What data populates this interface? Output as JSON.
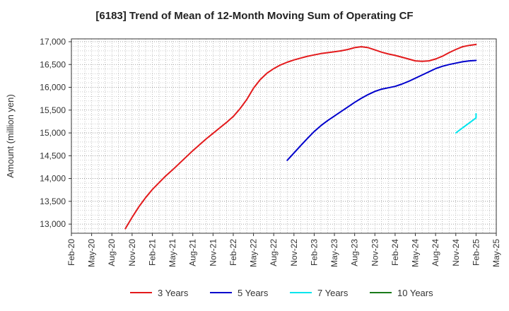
{
  "chart_data": {
    "type": "line",
    "title": "[6183]  Trend of Mean of 12-Month Moving Sum of Operating CF",
    "ylabel": "Amount (million yen)",
    "xlabel": "",
    "ylim": [
      12800,
      17000
    ],
    "yticks": [
      13000,
      13500,
      14000,
      14500,
      15000,
      15500,
      16000,
      16500,
      17000
    ],
    "ytick_labels": [
      "13,000",
      "13,500",
      "14,000",
      "14,500",
      "15,000",
      "15,500",
      "16,000",
      "16,500",
      "17,000"
    ],
    "xlim": [
      "2020-02",
      "2025-05"
    ],
    "xtick_labels": [
      "Feb-20",
      "May-20",
      "Aug-20",
      "Nov-20",
      "Feb-21",
      "May-21",
      "Aug-21",
      "Nov-21",
      "Feb-22",
      "May-22",
      "Aug-22",
      "Nov-22",
      "Feb-23",
      "May-23",
      "Aug-23",
      "Nov-23",
      "Feb-24",
      "May-24",
      "Aug-24",
      "Nov-24",
      "Feb-25",
      "May-25"
    ],
    "grid": true,
    "legend_position": "bottom",
    "series": [
      {
        "name": "3 Years",
        "color": "#e31a1c",
        "points": [
          [
            "2020-10",
            12900
          ],
          [
            "2020-11",
            13150
          ],
          [
            "2020-12",
            13380
          ],
          [
            "2021-01",
            13580
          ],
          [
            "2021-02",
            13760
          ],
          [
            "2021-03",
            13910
          ],
          [
            "2021-04",
            14060
          ],
          [
            "2021-05",
            14190
          ],
          [
            "2021-06",
            14330
          ],
          [
            "2021-07",
            14470
          ],
          [
            "2021-08",
            14610
          ],
          [
            "2021-09",
            14740
          ],
          [
            "2021-10",
            14870
          ],
          [
            "2021-11",
            14990
          ],
          [
            "2021-12",
            15110
          ],
          [
            "2022-01",
            15230
          ],
          [
            "2022-02",
            15360
          ],
          [
            "2022-03",
            15530
          ],
          [
            "2022-04",
            15730
          ],
          [
            "2022-05",
            15980
          ],
          [
            "2022-06",
            16170
          ],
          [
            "2022-07",
            16310
          ],
          [
            "2022-08",
            16410
          ],
          [
            "2022-09",
            16490
          ],
          [
            "2022-10",
            16550
          ],
          [
            "2022-11",
            16600
          ],
          [
            "2022-12",
            16640
          ],
          [
            "2023-01",
            16680
          ],
          [
            "2023-02",
            16710
          ],
          [
            "2023-03",
            16740
          ],
          [
            "2023-04",
            16760
          ],
          [
            "2023-05",
            16780
          ],
          [
            "2023-06",
            16800
          ],
          [
            "2023-07",
            16830
          ],
          [
            "2023-08",
            16870
          ],
          [
            "2023-09",
            16890
          ],
          [
            "2023-10",
            16870
          ],
          [
            "2023-11",
            16820
          ],
          [
            "2023-12",
            16770
          ],
          [
            "2024-01",
            16730
          ],
          [
            "2024-02",
            16700
          ],
          [
            "2024-03",
            16660
          ],
          [
            "2024-04",
            16620
          ],
          [
            "2024-05",
            16580
          ],
          [
            "2024-06",
            16570
          ],
          [
            "2024-07",
            16580
          ],
          [
            "2024-08",
            16620
          ],
          [
            "2024-09",
            16680
          ],
          [
            "2024-10",
            16760
          ],
          [
            "2024-11",
            16830
          ],
          [
            "2024-12",
            16890
          ],
          [
            "2025-01",
            16920
          ],
          [
            "2025-02",
            16940
          ]
        ]
      },
      {
        "name": "5 Years",
        "color": "#0000cc",
        "points": [
          [
            "2022-10",
            14400
          ],
          [
            "2022-11",
            14560
          ],
          [
            "2022-12",
            14720
          ],
          [
            "2023-01",
            14880
          ],
          [
            "2023-02",
            15030
          ],
          [
            "2023-03",
            15160
          ],
          [
            "2023-04",
            15270
          ],
          [
            "2023-05",
            15370
          ],
          [
            "2023-06",
            15470
          ],
          [
            "2023-07",
            15570
          ],
          [
            "2023-08",
            15670
          ],
          [
            "2023-09",
            15760
          ],
          [
            "2023-10",
            15840
          ],
          [
            "2023-11",
            15910
          ],
          [
            "2023-12",
            15960
          ],
          [
            "2024-01",
            15990
          ],
          [
            "2024-02",
            16020
          ],
          [
            "2024-03",
            16070
          ],
          [
            "2024-04",
            16130
          ],
          [
            "2024-05",
            16200
          ],
          [
            "2024-06",
            16270
          ],
          [
            "2024-07",
            16340
          ],
          [
            "2024-08",
            16410
          ],
          [
            "2024-09",
            16460
          ],
          [
            "2024-10",
            16500
          ],
          [
            "2024-11",
            16530
          ],
          [
            "2024-12",
            16560
          ],
          [
            "2025-01",
            16580
          ],
          [
            "2025-02",
            16590
          ]
        ]
      },
      {
        "name": "7 Years",
        "color": "#00e5ee",
        "points": [
          [
            "2024-11",
            15000
          ],
          [
            "2024-12",
            15110
          ],
          [
            "2025-01",
            15220
          ],
          [
            "2025-02",
            15330
          ],
          [
            "2025-02",
            15420
          ]
        ]
      },
      {
        "name": "10 Years",
        "color": "#1a7a1a",
        "points": []
      }
    ]
  }
}
